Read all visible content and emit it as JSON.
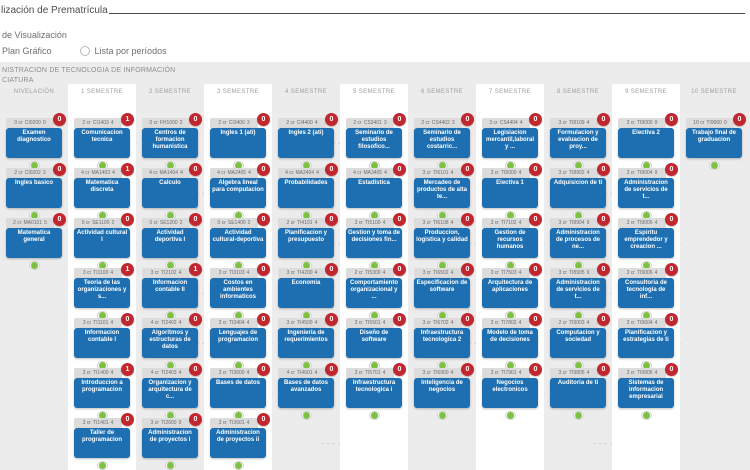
{
  "page": {
    "title": "lización de Prematrícula",
    "view_section_label": "de Visualización",
    "radio_plan": "Plan Gráfico",
    "radio_list": "Lista por períodos",
    "program_line1": "NISTRACION DE TECNOLOGIA DE INFORMACIÓN",
    "program_line2": "CIATURA"
  },
  "colors": {
    "blue": "#1d6fb2",
    "red": "#c2262e",
    "green": "#7cc142",
    "grid-gray": "#ececec",
    "head-gray": "#dcdcdc"
  },
  "columns": [
    {
      "label": "NIVELACIÓN",
      "courses": [
        {
          "credits": "0 cr",
          "code": "CI0200",
          "hours": "0",
          "badge": "0",
          "title": "Examen diagnostico"
        },
        {
          "credits": "2 cr",
          "code": "CI0202",
          "hours": "3",
          "badge": "0",
          "title": "Ingles basico"
        },
        {
          "credits": "2 cr",
          "code": "MA0101",
          "hours": "5",
          "badge": "0",
          "title": "Matematica general"
        }
      ]
    },
    {
      "label": "1 SEMESTRE",
      "courses": [
        {
          "credits": "2 cr",
          "code": "CI1403",
          "hours": "4",
          "badge": "1",
          "title": "Comunicacion tecnica"
        },
        {
          "credits": "4 cr",
          "code": "MA1403",
          "hours": "4",
          "badge": "1",
          "title": "Matematica discreta"
        },
        {
          "credits": "0 cr",
          "code": "SE1100",
          "hours": "2",
          "badge": "0",
          "title": "Actividad cultural I"
        },
        {
          "credits": "3 cr",
          "code": "TI1100",
          "hours": "4",
          "badge": "1",
          "title": "Teoria de las organizaciones y s..."
        },
        {
          "credits": "3 cr",
          "code": "TI1101",
          "hours": "4",
          "badge": "0",
          "title": "Informacion contable I"
        },
        {
          "credits": "3 cr",
          "code": "TI1400",
          "hours": "4",
          "badge": "1",
          "title": "Introduccion a programacion"
        },
        {
          "credits": "3 cr",
          "code": "TI1401",
          "hours": "4",
          "badge": "0",
          "title": "Taller de programacion"
        }
      ]
    },
    {
      "label": "2 SEMESTRE",
      "courses": [
        {
          "credits": "0 cr",
          "code": "FH1000",
          "hours": "2",
          "badge": "0",
          "title": "Centros de formacion humanistica"
        },
        {
          "credits": "4 cr",
          "code": "MA1404",
          "hours": "4",
          "badge": "0",
          "title": "Calculo"
        },
        {
          "credits": "0 cr",
          "code": "SE1200",
          "hours": "2",
          "badge": "0",
          "title": "Actividad deportiva I"
        },
        {
          "credits": "3 cr",
          "code": "TI2102",
          "hours": "4",
          "badge": "1",
          "title": "Informacion contable II"
        },
        {
          "credits": "4 cr",
          "code": "TI2402",
          "hours": "4",
          "badge": "0",
          "title": "Algoritmos y estructuras de datos"
        },
        {
          "credits": "4 cr",
          "code": "TI2403",
          "hours": "4",
          "badge": "0",
          "title": "Organizacion y arquitectura de c..."
        },
        {
          "credits": "3 cr",
          "code": "TI2600",
          "hours": "9",
          "badge": "0",
          "title": "Administracion de proyectos i"
        }
      ]
    },
    {
      "label": "3 SEMESTRE",
      "courses": [
        {
          "credits": "2 cr",
          "code": "CI3400",
          "hours": "3",
          "badge": "0",
          "title": "Ingles 1 (ati)"
        },
        {
          "credits": "4 cr",
          "code": "MA2405",
          "hours": "4",
          "badge": "0",
          "title": "Algebra lineal para computacion"
        },
        {
          "credits": "0 cr",
          "code": "SE1400",
          "hours": "2",
          "badge": "0",
          "title": "Actividad cultural-deportiva"
        },
        {
          "credits": "3 cr",
          "code": "TI3103",
          "hours": "4",
          "badge": "0",
          "title": "Costos en ambientes informaticos"
        },
        {
          "credits": "3 cr",
          "code": "TI3404",
          "hours": "4",
          "badge": "0",
          "title": "Lenguajes de programacion"
        },
        {
          "credits": "3 cr",
          "code": "TI3600",
          "hours": "4",
          "badge": "0",
          "title": "Bases de datos"
        },
        {
          "credits": "3 cr",
          "code": "TI3601",
          "hours": "4",
          "badge": "0",
          "title": "Administracion de proyectos ii"
        }
      ]
    },
    {
      "label": "4 SEMESTRE",
      "courses": [
        {
          "credits": "2 cr",
          "code": "CI4400",
          "hours": "4",
          "badge": "0",
          "title": "Ingles 2 (ati)"
        },
        {
          "credits": "4 cr",
          "code": "MA2404",
          "hours": "4",
          "badge": "0",
          "title": "Probabilidades"
        },
        {
          "credits": "2 cr",
          "code": "TI4101",
          "hours": "4",
          "badge": "0",
          "title": "Planificacion y presupuesto"
        },
        {
          "credits": "3 cr",
          "code": "TI4200",
          "hours": "4",
          "badge": "0",
          "title": "Economia"
        },
        {
          "credits": "3 cr",
          "code": "TI4500",
          "hours": "4",
          "badge": "0",
          "title": "Ingenieria de requerimientos"
        },
        {
          "credits": "4 cr",
          "code": "TI4601",
          "hours": "4",
          "badge": "0",
          "title": "Bases de datos avanzados"
        }
      ]
    },
    {
      "label": "5 SEMESTRE",
      "courses": [
        {
          "credits": "2 cr",
          "code": "CS3401",
          "hours": "3",
          "badge": "0",
          "title": "Seminario de estudios filosofico..."
        },
        {
          "credits": "4 cr",
          "code": "MA3405",
          "hours": "4",
          "badge": "0",
          "title": "Estadistica"
        },
        {
          "credits": "3 cr",
          "code": "TI5100",
          "hours": "4",
          "badge": "0",
          "title": "Gestion y toma de decisiones fin..."
        },
        {
          "credits": "2 cr",
          "code": "TI5300",
          "hours": "4",
          "badge": "0",
          "title": "Comportamiento organizacional y ..."
        },
        {
          "credits": "3 cr",
          "code": "TI5501",
          "hours": "4",
          "badge": "0",
          "title": "Diseño de software"
        },
        {
          "credits": "3 cr",
          "code": "TI5701",
          "hours": "4",
          "badge": "0",
          "title": "Infraestructura tecnologica i"
        }
      ]
    },
    {
      "label": "6 SEMESTRE",
      "courses": [
        {
          "credits": "2 cr",
          "code": "CS4402",
          "hours": "3",
          "badge": "0",
          "title": "Seminario de estudios costarric..."
        },
        {
          "credits": "3 cr",
          "code": "TI6101",
          "hours": "4",
          "badge": "0",
          "title": "Mercadeo de productos de alta te..."
        },
        {
          "credits": "3 cr",
          "code": "TI6108",
          "hours": "4",
          "badge": "0",
          "title": "Produccion, logistica y calidad"
        },
        {
          "credits": "3 cr",
          "code": "TI6502",
          "hours": "4",
          "badge": "0",
          "title": "Especificacion de software"
        },
        {
          "credits": "3 cr",
          "code": "TI6702",
          "hours": "4",
          "badge": "0",
          "title": "Infraestructura tecnologica 2"
        },
        {
          "credits": "3 cr",
          "code": "TI6900",
          "hours": "4",
          "badge": "0",
          "title": "Inteligencia de negocios"
        }
      ]
    },
    {
      "label": "7 SEMESTRE",
      "courses": [
        {
          "credits": "3 cr",
          "code": "CS4404",
          "hours": "4",
          "badge": "0",
          "title": "Legislacion mercantil,laboral y ..."
        },
        {
          "credits": "3 cr",
          "code": "TI5000",
          "hours": "4",
          "badge": "0",
          "title": "Electiva 1"
        },
        {
          "credits": "3 cr",
          "code": "TI7102",
          "hours": "4",
          "badge": "0",
          "title": "Gestion de recursos humanos"
        },
        {
          "credits": "3 cr",
          "code": "TI7503",
          "hours": "4",
          "badge": "0",
          "title": "Arquitectura de aplicaciones"
        },
        {
          "credits": "3 cr",
          "code": "TI7802",
          "hours": "4",
          "badge": "0",
          "title": "Modelo de toma de decisiones"
        },
        {
          "credits": "3 cr",
          "code": "TI7901",
          "hours": "4",
          "badge": "0",
          "title": "Negocios electronicos"
        }
      ]
    },
    {
      "label": "8 SEMESTRE",
      "courses": [
        {
          "credits": "3 cr",
          "code": "TI8109",
          "hours": "4",
          "badge": "0",
          "title": "Formulacion y evaluacion de proy..."
        },
        {
          "credits": "3 cr",
          "code": "TI8902",
          "hours": "4",
          "badge": "0",
          "title": "Adquisicion de ti"
        },
        {
          "credits": "3 cr",
          "code": "TI8904",
          "hours": "9",
          "badge": "0",
          "title": "Administracion de procesos de ne..."
        },
        {
          "credits": "3 cr",
          "code": "TI8905",
          "hours": "9",
          "badge": "0",
          "title": "Administracion de servicios de t..."
        },
        {
          "credits": "2 cr",
          "code": "TI9003",
          "hours": "4",
          "badge": "0",
          "title": "Computacion y sociedad"
        },
        {
          "credits": "3 cr",
          "code": "TI9805",
          "hours": "4",
          "badge": "0",
          "title": "Auditoria de ti"
        }
      ]
    },
    {
      "label": "9 SEMESTRE",
      "courses": [
        {
          "credits": "3 cr",
          "code": "TI9000",
          "hours": "9",
          "badge": "0",
          "title": "Electiva 2"
        },
        {
          "credits": "3 cr",
          "code": "TI9004",
          "hours": "9",
          "badge": "0",
          "title": "Administracion de servicios de t..."
        },
        {
          "credits": "3 cr",
          "code": "TI9005",
          "hours": "4",
          "badge": "0",
          "title": "Espiritu emprendedor y creacion ..."
        },
        {
          "credits": "3 cr",
          "code": "TI9006",
          "hours": "4",
          "badge": "0",
          "title": "Consultoria de tecnologia de inf..."
        },
        {
          "credits": "3 cr",
          "code": "TI9604",
          "hours": "4",
          "badge": "0",
          "title": "Planificacion y estrategias de ti"
        },
        {
          "credits": "3 cr",
          "code": "TI9905",
          "hours": "4",
          "badge": "0",
          "title": "Sistemas de informacion empresarial"
        }
      ]
    },
    {
      "label": "10 SEMESTRE",
      "courses": [
        {
          "credits": "10 cr",
          "code": "TI9000",
          "hours": "0",
          "badge": "0",
          "title": "Trabajo final de graduacion"
        }
      ]
    }
  ]
}
